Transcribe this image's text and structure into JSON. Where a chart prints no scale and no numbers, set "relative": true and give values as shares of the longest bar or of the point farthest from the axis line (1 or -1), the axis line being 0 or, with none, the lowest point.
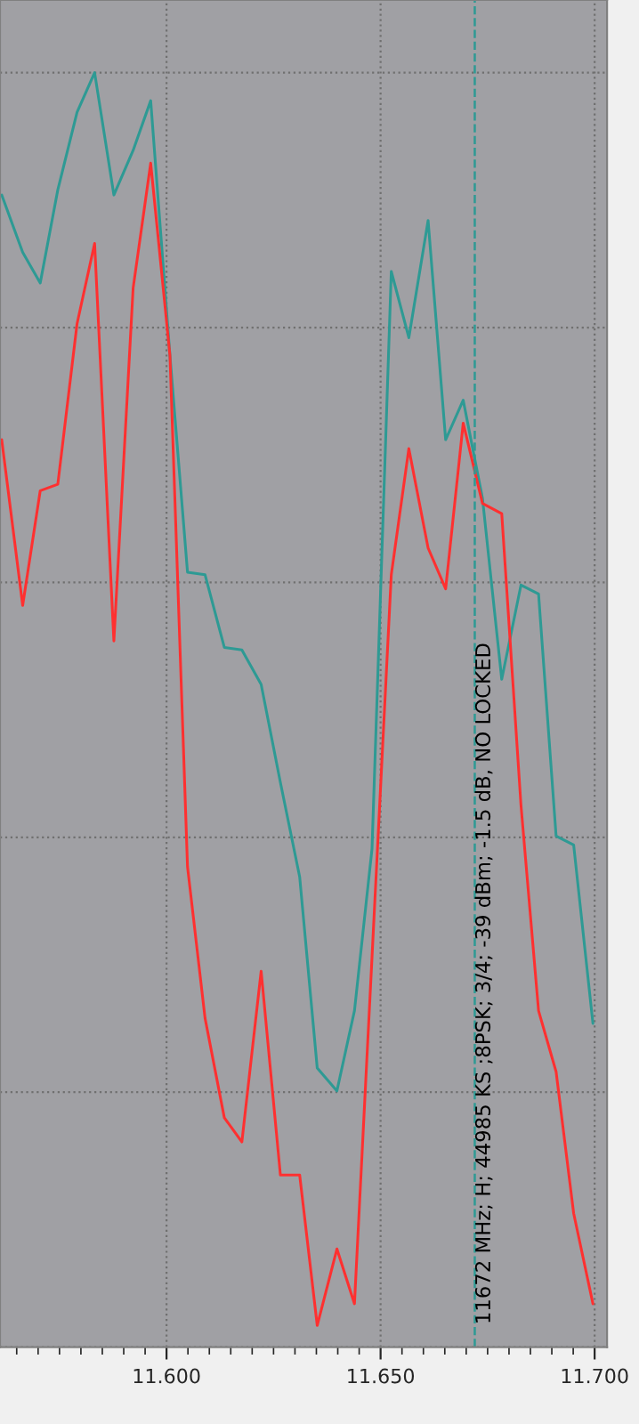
{
  "chart_data": {
    "type": "line",
    "relative": true,
    "grid": true,
    "legend": false,
    "marker": "none",
    "line_style": "solid",
    "x": [
      11.5615,
      11.5664,
      11.5705,
      11.5746,
      11.5791,
      11.5832,
      11.5877,
      11.5922,
      11.5963,
      11.6008,
      11.6049,
      11.609,
      11.6135,
      11.6176,
      11.6221,
      11.6266,
      11.6311,
      11.6352,
      11.6398,
      11.6439,
      11.648,
      11.6525,
      11.6566,
      11.6611,
      11.6652,
      11.6693,
      11.6738,
      11.6783,
      11.6828,
      11.6869,
      11.691,
      11.6951,
      11.6996
    ],
    "xlim": [
      11.5611,
      11.7029
    ],
    "xticks": [
      {
        "value": 11.565,
        "label": null
      },
      {
        "value": 11.57,
        "label": null
      },
      {
        "value": 11.575,
        "label": null
      },
      {
        "value": 11.58,
        "label": null
      },
      {
        "value": 11.585,
        "label": null
      },
      {
        "value": 11.59,
        "label": null
      },
      {
        "value": 11.595,
        "label": null
      },
      {
        "value": 11.6,
        "label": "11.600"
      },
      {
        "value": 11.605,
        "label": null
      },
      {
        "value": 11.61,
        "label": null
      },
      {
        "value": 11.615,
        "label": null
      },
      {
        "value": 11.62,
        "label": null
      },
      {
        "value": 11.625,
        "label": null
      },
      {
        "value": 11.63,
        "label": null
      },
      {
        "value": 11.635,
        "label": null
      },
      {
        "value": 11.64,
        "label": null
      },
      {
        "value": 11.645,
        "label": null
      },
      {
        "value": 11.65,
        "label": "11.650"
      },
      {
        "value": 11.655,
        "label": null
      },
      {
        "value": 11.66,
        "label": null
      },
      {
        "value": 11.665,
        "label": null
      },
      {
        "value": 11.67,
        "label": null
      },
      {
        "value": 11.675,
        "label": null
      },
      {
        "value": 11.68,
        "label": null
      },
      {
        "value": 11.685,
        "label": null
      },
      {
        "value": 11.69,
        "label": null
      },
      {
        "value": 11.695,
        "label": null
      },
      {
        "value": 11.7,
        "label": "11.700"
      }
    ],
    "series": [
      {
        "color": "#2e9a94",
        "values": [
          0.904,
          0.859,
          0.835,
          0.908,
          0.969,
          1.0,
          0.904,
          0.939,
          0.978,
          0.778,
          0.608,
          0.606,
          0.549,
          0.547,
          0.52,
          0.443,
          0.369,
          0.219,
          0.201,
          0.264,
          0.391,
          0.844,
          0.792,
          0.884,
          0.712,
          0.743,
          0.666,
          0.524,
          0.598,
          0.591,
          0.401,
          0.394,
          0.254
        ]
      },
      {
        "color": "#ff3030",
        "values": [
          0.712,
          0.582,
          0.672,
          0.677,
          0.803,
          0.866,
          0.554,
          0.831,
          0.929,
          0.778,
          0.377,
          0.258,
          0.18,
          0.161,
          0.295,
          0.135,
          0.135,
          0.017,
          0.077,
          0.034,
          0.306,
          0.606,
          0.705,
          0.627,
          0.595,
          0.725,
          0.662,
          0.654,
          0.425,
          0.264,
          0.216,
          0.105,
          0.034
        ]
      }
    ],
    "ref_lines": [
      {
        "axis": "x",
        "value": 11.672,
        "label": "11672 MHz; H; 44985 KS ;8PSK; 3/4; -39 dBm; -1.5 dB, NO LOCKED",
        "color": "#2e9a94",
        "line_style": "dashed"
      }
    ]
  }
}
